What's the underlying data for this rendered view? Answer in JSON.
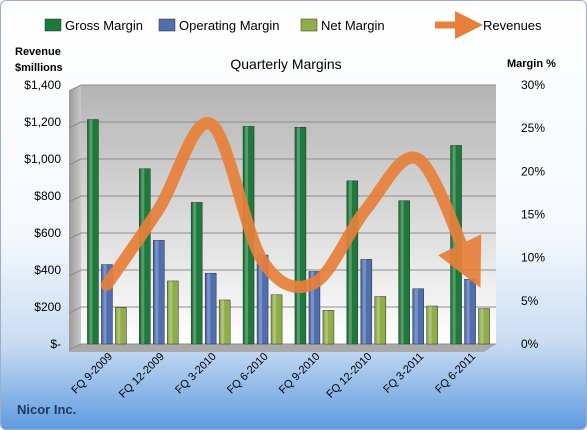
{
  "chart_data": {
    "type": "bar",
    "title": "Quarterly Margins",
    "ylabel_left": "Revenue $millions",
    "ylabel_right": "Margin %",
    "categories": [
      "FQ 9-2009",
      "FQ 12-2009",
      "FQ 3-2010",
      "FQ 6-2010",
      "FQ 9-2010",
      "FQ 12-2010",
      "FQ 3-2011",
      "FQ 6-2011"
    ],
    "y_left": {
      "min": 0,
      "max": 1400,
      "step": 200,
      "tick_labels": [
        "$-",
        "$200",
        "$400",
        "$600",
        "$800",
        "$1,000",
        "$1,200",
        "$1,400"
      ]
    },
    "y_right": {
      "min": 0,
      "max": 30,
      "step": 5,
      "tick_labels": [
        "0%",
        "5%",
        "10%",
        "15%",
        "20%",
        "25%",
        "30%"
      ]
    },
    "series": [
      {
        "name": "Gross Margin",
        "type": "bar",
        "axis": "right",
        "color": "#1e7a3a",
        "values": [
          26.0,
          20.3,
          16.4,
          25.2,
          25.1,
          18.9,
          16.6,
          23.0
        ]
      },
      {
        "name": "Operating Margin",
        "type": "bar",
        "axis": "right",
        "color": "#4f6fb0",
        "values": [
          9.2,
          12.0,
          8.2,
          10.3,
          8.4,
          9.8,
          6.4,
          7.5
        ]
      },
      {
        "name": "Net Margin",
        "type": "bar",
        "axis": "right",
        "color": "#8fae4a",
        "values": [
          4.2,
          7.3,
          5.1,
          5.7,
          3.9,
          5.5,
          4.4,
          4.1
        ]
      },
      {
        "name": "Revenues",
        "type": "line",
        "axis": "left",
        "color": "#e8803a",
        "values": [
          320,
          730,
          1190,
          450,
          330,
          730,
          1000,
          420
        ]
      }
    ],
    "grid": true,
    "legend_position": "top"
  },
  "footer": {
    "company": "Nicor Inc."
  }
}
